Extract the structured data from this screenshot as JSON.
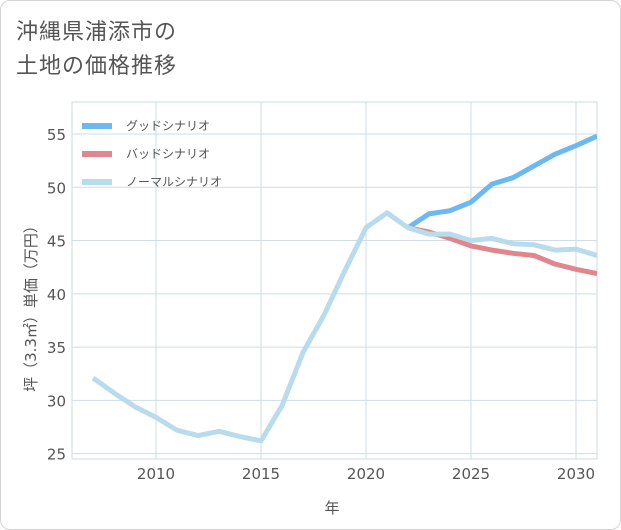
{
  "title_line1": "沖縄県浦添市の",
  "title_line2": "土地の価格推移",
  "chart_data": {
    "type": "line",
    "xlabel": "年",
    "ylabel": "坪（3.3㎡）単価（万円）",
    "xlim": [
      2006,
      2031
    ],
    "ylim": [
      24.5,
      58
    ],
    "xticks": [
      2010,
      2015,
      2020,
      2025,
      2030
    ],
    "yticks": [
      25,
      30,
      35,
      40,
      45,
      50,
      55
    ],
    "grid": true,
    "legend_position": "top-left",
    "series": [
      {
        "name": "グッドシナリオ",
        "color": "#6cb8f0",
        "points": [
          [
            2022,
            46.2
          ],
          [
            2023,
            47.5
          ],
          [
            2024,
            47.8
          ],
          [
            2025,
            48.6
          ],
          [
            2026,
            50.3
          ],
          [
            2027,
            50.9
          ],
          [
            2028,
            52.0
          ],
          [
            2029,
            53.1
          ],
          [
            2030,
            53.9
          ],
          [
            2031,
            54.8
          ]
        ]
      },
      {
        "name": "バッドシナリオ",
        "color": "#e0878e",
        "points": [
          [
            2022,
            46.2
          ],
          [
            2023,
            45.8
          ],
          [
            2024,
            45.2
          ],
          [
            2025,
            44.5
          ],
          [
            2026,
            44.1
          ],
          [
            2027,
            43.8
          ],
          [
            2028,
            43.6
          ],
          [
            2029,
            42.8
          ],
          [
            2030,
            42.3
          ],
          [
            2031,
            41.9
          ]
        ]
      },
      {
        "name": "ノーマルシナリオ",
        "color": "#b9dcec",
        "points": [
          [
            2007,
            32.1
          ],
          [
            2008,
            30.7
          ],
          [
            2009,
            29.4
          ],
          [
            2010,
            28.4
          ],
          [
            2011,
            27.2
          ],
          [
            2012,
            26.7
          ],
          [
            2013,
            27.1
          ],
          [
            2014,
            26.6
          ],
          [
            2015,
            26.2
          ],
          [
            2016,
            29.5
          ],
          [
            2017,
            34.5
          ],
          [
            2018,
            38.0
          ],
          [
            2019,
            42.2
          ],
          [
            2020,
            46.2
          ],
          [
            2021,
            47.6
          ],
          [
            2022,
            46.2
          ],
          [
            2023,
            45.6
          ],
          [
            2024,
            45.6
          ],
          [
            2025,
            45.0
          ],
          [
            2026,
            45.2
          ],
          [
            2027,
            44.7
          ],
          [
            2028,
            44.6
          ],
          [
            2029,
            44.1
          ],
          [
            2030,
            44.2
          ],
          [
            2031,
            43.6
          ]
        ]
      }
    ]
  }
}
